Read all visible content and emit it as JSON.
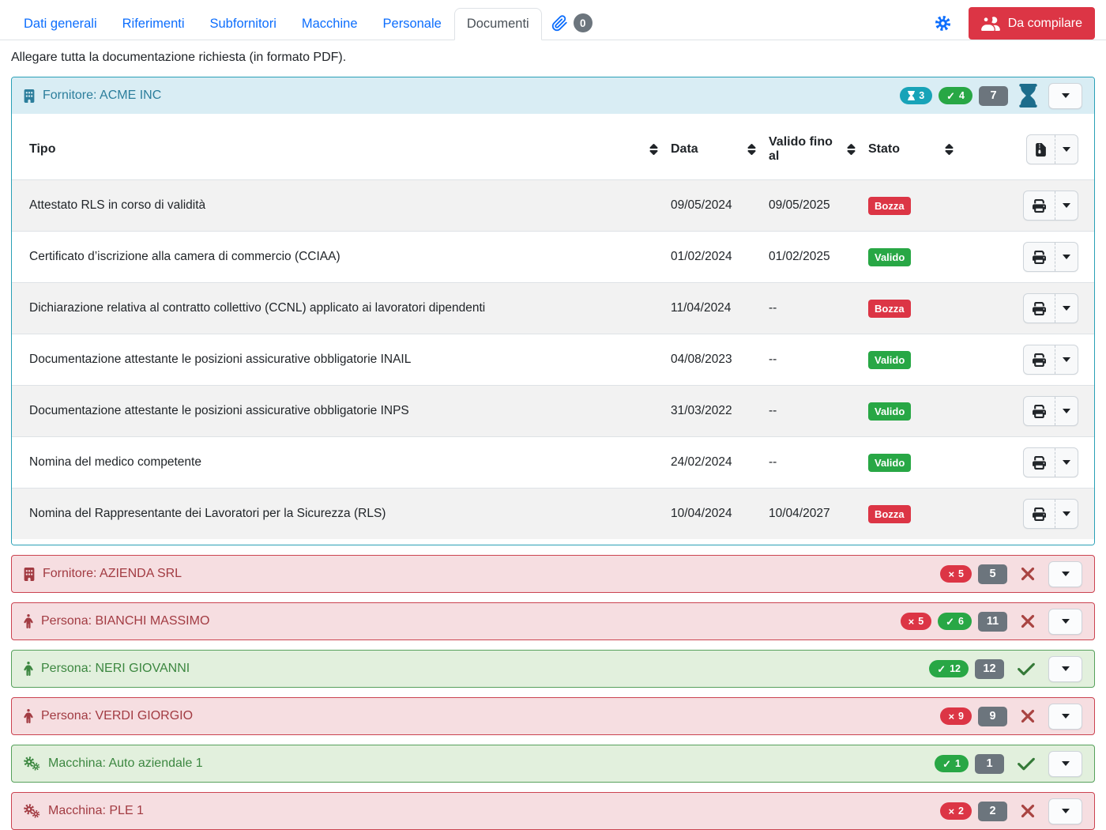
{
  "tabs": {
    "items": [
      {
        "label": "Dati generali"
      },
      {
        "label": "Riferimenti"
      },
      {
        "label": "Subfornitori"
      },
      {
        "label": "Macchine"
      },
      {
        "label": "Personale"
      },
      {
        "label": "Documenti"
      }
    ],
    "active_tab": "Documenti",
    "attachments_count": "0"
  },
  "header_actions": {
    "da_compilare_label": "Da compilare"
  },
  "intro_text": "Allegare tutta la documentazione richiesta (in formato PDF).",
  "colors": {
    "link_blue": "#0d6efd",
    "info_teal": "#18a3b8",
    "success_green": "#28a745",
    "danger_red": "#dc3545",
    "neutral_gray": "#6c757d",
    "info_panel_bg": "#d9edf4",
    "danger_panel_bg": "#f6dee1",
    "success_panel_bg": "#e2f0dd"
  },
  "acme_panel": {
    "title": "Fornitore: ACME INC",
    "pending_count": "3",
    "valid_count": "4",
    "total_count": "7",
    "table": {
      "headers": {
        "tipo": "Tipo",
        "data": "Data",
        "valido": "Valido fino al",
        "stato": "Stato"
      },
      "rows": [
        {
          "tipo": "Attestato RLS in corso di validità",
          "data": "09/05/2024",
          "valido": "09/05/2025",
          "stato": "Bozza"
        },
        {
          "tipo": "Certificato d’iscrizione alla camera di commercio (CCIAA)",
          "data": "01/02/2024",
          "valido": "01/02/2025",
          "stato": "Valido"
        },
        {
          "tipo": "Dichiarazione relativa al contratto collettivo (CCNL) applicato ai lavoratori dipendenti",
          "data": "11/04/2024",
          "valido": "--",
          "stato": "Bozza"
        },
        {
          "tipo": "Documentazione attestante le posizioni assicurative obbligatorie INAIL",
          "data": "04/08/2023",
          "valido": "--",
          "stato": "Valido"
        },
        {
          "tipo": "Documentazione attestante le posizioni assicurative obbligatorie INPS",
          "data": "31/03/2022",
          "valido": "--",
          "stato": "Valido"
        },
        {
          "tipo": "Nomina del medico competente",
          "data": "24/02/2024",
          "valido": "--",
          "stato": "Valido"
        },
        {
          "tipo": "Nomina del Rappresentante dei Lavoratori per la Sicurezza (RLS)",
          "data": "10/04/2024",
          "valido": "10/04/2027",
          "stato": "Bozza"
        }
      ]
    }
  },
  "status_styles": {
    "Bozza": "danger",
    "Valido": "success"
  },
  "collapsed_panels": [
    {
      "icon": "building-icon",
      "title": "Fornitore: AZIENDA SRL",
      "state": "danger",
      "invalid_count": "5",
      "valid_count": null,
      "total_count": "5"
    },
    {
      "icon": "person-icon",
      "title": "Persona: BIANCHI MASSIMO",
      "state": "danger",
      "invalid_count": "5",
      "valid_count": "6",
      "total_count": "11"
    },
    {
      "icon": "person-icon",
      "title": "Persona: NERI GIOVANNI",
      "state": "success",
      "invalid_count": null,
      "valid_count": "12",
      "total_count": "12"
    },
    {
      "icon": "person-icon",
      "title": "Persona: VERDI GIORGIO",
      "state": "danger",
      "invalid_count": "9",
      "valid_count": null,
      "total_count": "9"
    },
    {
      "icon": "gears-icon",
      "title": "Macchina: Auto aziendale 1",
      "state": "success",
      "invalid_count": null,
      "valid_count": "1",
      "total_count": "1"
    },
    {
      "icon": "gears-icon",
      "title": "Macchina: PLE 1",
      "state": "danger",
      "invalid_count": "2",
      "valid_count": null,
      "total_count": "2"
    }
  ]
}
